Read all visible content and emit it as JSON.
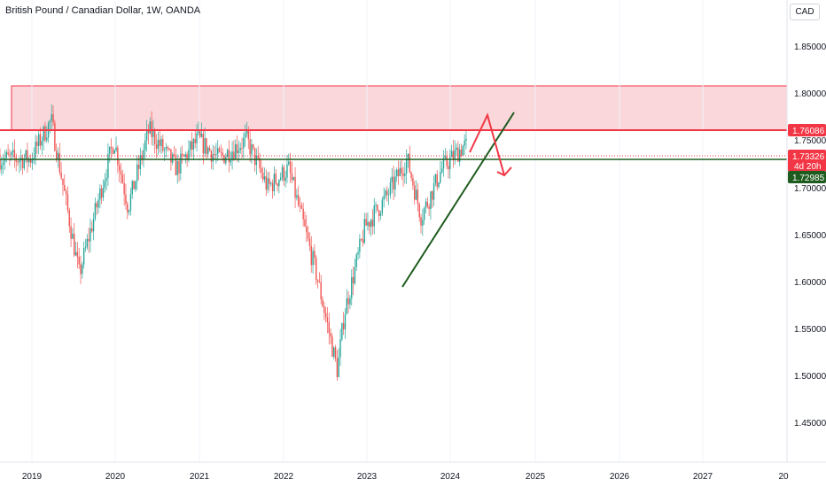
{
  "header": {
    "title": "British Pound / Canadian Dollar, 1W, OANDA",
    "currency": "CAD"
  },
  "chart_data": {
    "type": "candlestick",
    "symbol": "GBPCAD",
    "interval": "1W",
    "ylim": [
      1.405,
      1.885
    ],
    "y_ticks": [
      "1.85000",
      "1.80000",
      "1.75000",
      "1.70000",
      "1.65000",
      "1.60000",
      "1.55000",
      "1.50000",
      "1.45000"
    ],
    "x_ticks": [
      "2019",
      "2020",
      "2021",
      "2022",
      "2023",
      "2024",
      "2025",
      "2026",
      "2027",
      "20"
    ],
    "price_tags": [
      {
        "label": "1.76086",
        "color": "#f23645"
      },
      {
        "label": "1.73326",
        "sublabel": "4d 20h",
        "color": "#f23645"
      },
      {
        "label": "1.72985",
        "color": "#1e5b1e"
      }
    ],
    "resistance_zone": {
      "low": 1.7608,
      "high": 1.8095
    },
    "horizontal_lines": [
      {
        "value": 1.76086,
        "color": "#f23645"
      },
      {
        "value": 1.72985,
        "color": "#1e5b1e"
      }
    ],
    "trendline": {
      "from": [
        "2023-06",
        1.595
      ],
      "to": [
        "2024-09",
        1.78
      ]
    },
    "projection_path": [
      1.735,
      1.775,
      1.705
    ],
    "ohlc_key_points": [
      [
        "2019-01",
        1.72
      ],
      [
        "2019-04",
        1.76
      ],
      [
        "2019-08",
        1.6
      ],
      [
        "2020-01",
        1.74
      ],
      [
        "2020-03",
        1.67
      ],
      [
        "2020-06",
        1.75
      ],
      [
        "2020-10",
        1.71
      ],
      [
        "2021-01",
        1.74
      ],
      [
        "2021-04",
        1.72
      ],
      [
        "2021-08",
        1.74
      ],
      [
        "2021-11",
        1.69
      ],
      [
        "2022-02",
        1.71
      ],
      [
        "2022-06",
        1.6
      ],
      [
        "2022-09",
        1.5
      ],
      [
        "2022-10",
        1.56
      ],
      [
        "2023-01",
        1.65
      ],
      [
        "2023-04",
        1.68
      ],
      [
        "2023-07",
        1.72
      ],
      [
        "2023-09",
        1.66
      ],
      [
        "2023-12",
        1.71
      ],
      [
        "2024-03",
        1.733
      ]
    ]
  }
}
